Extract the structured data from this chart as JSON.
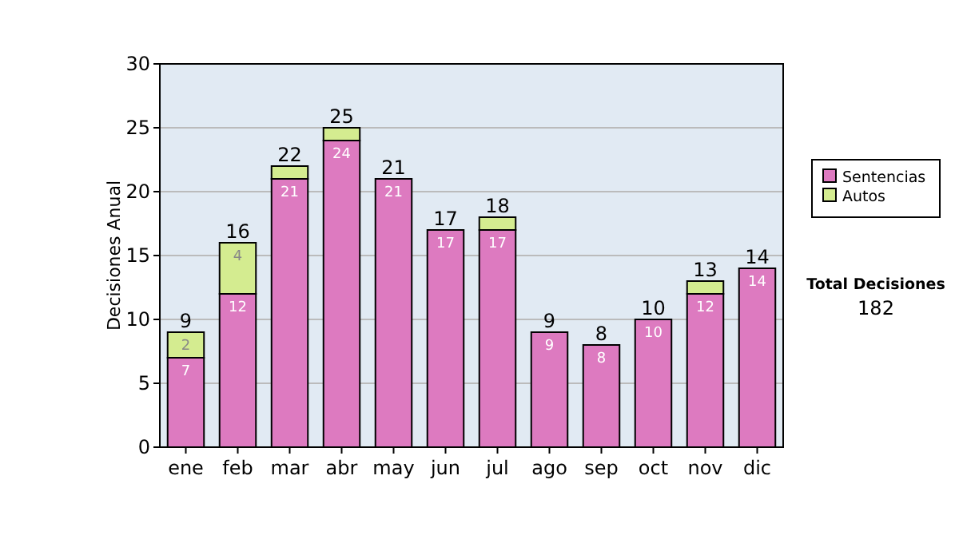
{
  "chart_data": {
    "type": "bar",
    "stacked": true,
    "ylabel": "Decisiones Anual",
    "categories": [
      "ene",
      "feb",
      "mar",
      "abr",
      "may",
      "jun",
      "jul",
      "ago",
      "sep",
      "oct",
      "nov",
      "dic"
    ],
    "series": [
      {
        "name": "Sentencias",
        "color": "#dd7ac0",
        "values": [
          7,
          12,
          21,
          24,
          21,
          17,
          17,
          9,
          8,
          10,
          12,
          14
        ],
        "value_labels": [
          "7",
          "12",
          "21",
          "24",
          "21",
          "17",
          "17",
          "9",
          "8",
          "10",
          "12",
          "14"
        ]
      },
      {
        "name": "Autos",
        "color": "#d4ec90",
        "values": [
          2,
          4,
          1,
          1,
          null,
          null,
          1,
          null,
          null,
          null,
          1,
          null
        ],
        "value_labels": [
          "2",
          "4",
          null,
          null,
          null,
          null,
          null,
          null,
          null,
          null,
          null,
          null
        ]
      }
    ],
    "totals": [
      "9",
      "16",
      "22",
      "25",
      "21",
      "17",
      "18",
      "9",
      "8",
      "10",
      "13",
      "14"
    ],
    "ylim": [
      0,
      30
    ],
    "yticks": [
      0,
      5,
      10,
      15,
      20,
      25,
      30
    ],
    "grid": "y",
    "legend": "right",
    "annotations": [
      "Total Decisiones",
      "182"
    ]
  }
}
